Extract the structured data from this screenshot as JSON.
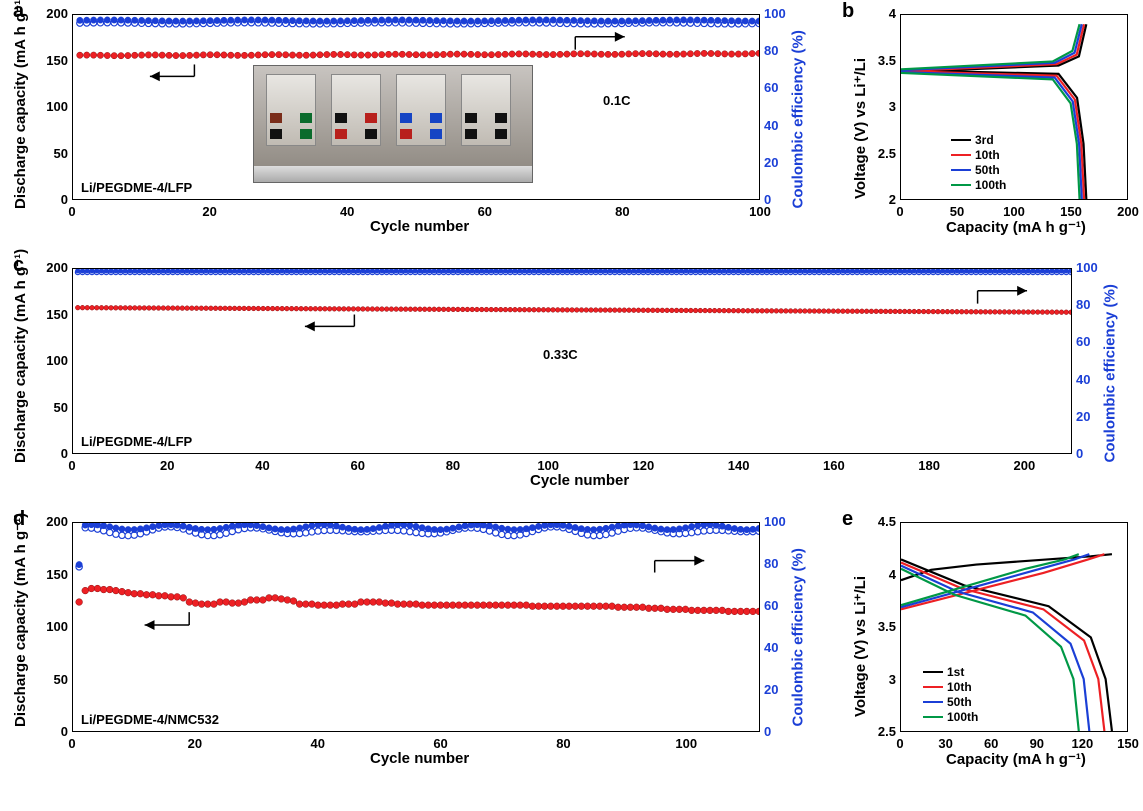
{
  "colors": {
    "red": "#ed2024",
    "blue": "#1b3fd6",
    "blue_open": "#1b3fd6",
    "black": "#000000",
    "green": "#009846",
    "axis": "#000000",
    "bg": "#ffffff",
    "blue_axis_text": "#1b3fd6"
  },
  "panel_a": {
    "letter": "a",
    "title_inset": "Li/PEGDME-4/LFP",
    "rate_label": "0.1C",
    "xlabel": "Cycle number",
    "ylabel_left": "Discharge capacity (mA h g⁻¹)",
    "ylabel_right": "Coulombic efficiency (%)",
    "xlim": [
      0,
      100
    ],
    "xtick_step": 20,
    "ylim_left": [
      0,
      200
    ],
    "ytick_left_step": 50,
    "ylim_right": [
      0,
      100
    ],
    "ytick_right_step": 20,
    "capacity_series": {
      "start": 156,
      "end": 158,
      "color": "#ed2024"
    },
    "ce_series": {
      "start": 97,
      "end": 97,
      "color": "#1b3fd6"
    }
  },
  "panel_b": {
    "letter": "b",
    "xlabel": "Capacity (mA h g⁻¹)",
    "ylabel": "Voltage (V) vs Li⁺/Li",
    "xlim": [
      0,
      200
    ],
    "xtick_step": 50,
    "ylim": [
      2.0,
      4.0
    ],
    "ytick_step": 0.5,
    "legend": [
      {
        "label": "3rd",
        "color": "#000000"
      },
      {
        "label": "10th",
        "color": "#ed2024"
      },
      {
        "label": "50th",
        "color": "#1b3fd6"
      },
      {
        "label": "100th",
        "color": "#009846"
      }
    ]
  },
  "panel_c": {
    "letter": "c",
    "title_inset": "Li/PEGDME-4/LFP",
    "rate_label": "0.33C",
    "xlabel": "Cycle number",
    "ylabel_left": "Discharge capacity (mA h g⁻¹)",
    "ylabel_right": "Coulombic efficiency (%)",
    "xlim": [
      0,
      210
    ],
    "xtick_step": 20,
    "ylim_left": [
      0,
      200
    ],
    "ytick_left_step": 50,
    "ylim_right": [
      0,
      100
    ],
    "ytick_right_step": 20,
    "capacity_series": {
      "start": 158,
      "end": 153,
      "color": "#ed2024"
    },
    "ce_series": {
      "start": 99,
      "end": 99,
      "color": "#1b3fd6"
    }
  },
  "panel_d": {
    "letter": "d",
    "title_inset": "Li/PEGDME-4/NMC532",
    "xlabel": "Cycle number",
    "ylabel_left": "Discharge capacity (mA h g⁻¹)",
    "ylabel_right": "Coulombic efficiency (%)",
    "xlim": [
      0,
      112
    ],
    "xtick_step": 20,
    "ylim_left": [
      0,
      200
    ],
    "ytick_left_step": 50,
    "ylim_right": [
      0,
      100
    ],
    "ytick_right_step": 20,
    "capacity_values": [
      124,
      135,
      137,
      137,
      136,
      136,
      135,
      134,
      133,
      132,
      132,
      131,
      131,
      130,
      130,
      129,
      129,
      128,
      124,
      123,
      122,
      122,
      122,
      124,
      124,
      123,
      123,
      124,
      126,
      126,
      126,
      128,
      128,
      127,
      126,
      125,
      122,
      122,
      122,
      121,
      121,
      121,
      121,
      122,
      122,
      122,
      124,
      124,
      124,
      124,
      123,
      123,
      122,
      122,
      122,
      122,
      121,
      121,
      121,
      121,
      121,
      121,
      121,
      121,
      121,
      121,
      121,
      121,
      121,
      121,
      121,
      121,
      121,
      121,
      120,
      120,
      120,
      120,
      120,
      120,
      120,
      120,
      120,
      120,
      120,
      120,
      120,
      120,
      119,
      119,
      119,
      119,
      119,
      118,
      118,
      118,
      117,
      117,
      117,
      117,
      116,
      116,
      116,
      116,
      116,
      116,
      115,
      115,
      115,
      115,
      115,
      115
    ],
    "ce_first": 80,
    "ce_rest": 98
  },
  "panel_e": {
    "letter": "e",
    "xlabel": "Capacity (mA h g⁻¹)",
    "ylabel": "Voltage (V) vs Li⁺/Li",
    "xlim": [
      0,
      150
    ],
    "xtick_step": 30,
    "ylim": [
      2.5,
      4.5
    ],
    "ytick_step": 0.5,
    "legend": [
      {
        "label": "1st",
        "color": "#000000"
      },
      {
        "label": "10th",
        "color": "#ed2024"
      },
      {
        "label": "50th",
        "color": "#1b3fd6"
      },
      {
        "label": "100th",
        "color": "#009846"
      }
    ]
  }
}
